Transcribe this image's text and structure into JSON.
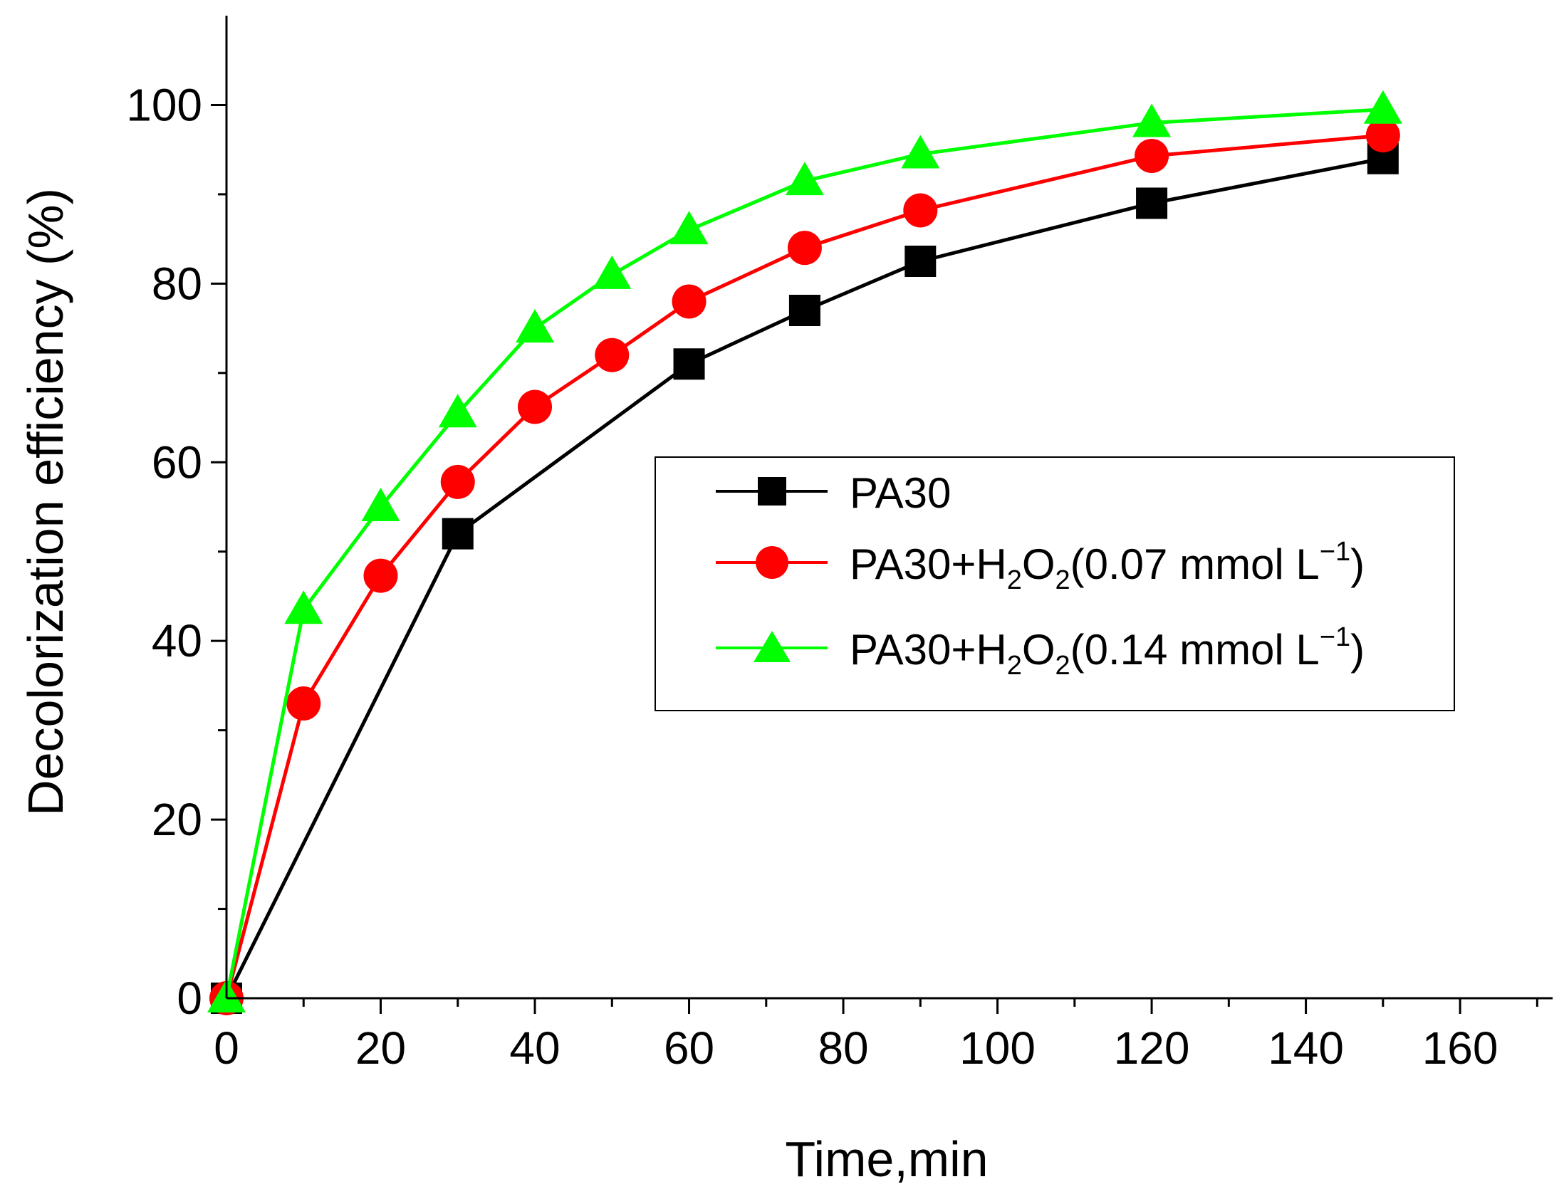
{
  "chart_data": {
    "type": "line",
    "title": "",
    "xlabel": "Time,min",
    "ylabel": "Decolorization efficiency (%)",
    "xlim": [
      0,
      172
    ],
    "ylim": [
      0,
      110
    ],
    "xticks": [
      0,
      20,
      40,
      60,
      80,
      100,
      120,
      140,
      160
    ],
    "yticks": [
      0,
      20,
      40,
      60,
      80,
      100
    ],
    "xtick_labels": [
      "0",
      "20",
      "40",
      "60",
      "80",
      "100",
      "120",
      "140",
      "160"
    ],
    "ytick_labels": [
      "0",
      "20",
      "40",
      "60",
      "80",
      "100"
    ],
    "legend_position": "center-right",
    "series": [
      {
        "name": "PA30",
        "label_main": "PA30",
        "color": "#000000",
        "marker": "square",
        "x": [
          0,
          30,
          60,
          75,
          90,
          120,
          150
        ],
        "y": [
          0,
          52,
          71,
          77,
          82.5,
          89,
          94
        ]
      },
      {
        "name": "PA30+H2O2(0.07 mmol L−1)",
        "label_main": "PA30+H",
        "label_sub1": "2",
        "label_mid": "O",
        "label_sub2": "2",
        "label_tail": "(0.07 mmol L",
        "label_sup": "−1",
        "label_end": ")",
        "color": "#ff0000",
        "marker": "circle",
        "x": [
          0,
          10,
          20,
          30,
          40,
          50,
          60,
          75,
          90,
          120,
          150
        ],
        "y": [
          0,
          33,
          47.3,
          57.8,
          66.2,
          72,
          78,
          84,
          88.2,
          94.3,
          96.6
        ]
      },
      {
        "name": "PA30+H2O2(0.14 mmol L−1)",
        "label_main": "PA30+H",
        "label_sub1": "2",
        "label_mid": "O",
        "label_sub2": "2",
        "label_tail": "(0.14 mmol L",
        "label_sup": "−1",
        "label_end": ")",
        "color": "#00ff00",
        "marker": "triangle",
        "x": [
          0,
          10,
          20,
          30,
          40,
          50,
          60,
          75,
          90,
          120,
          150
        ],
        "y": [
          0,
          43.5,
          55,
          65.5,
          75,
          81,
          86,
          91.5,
          94.5,
          98,
          99.5
        ]
      }
    ]
  }
}
